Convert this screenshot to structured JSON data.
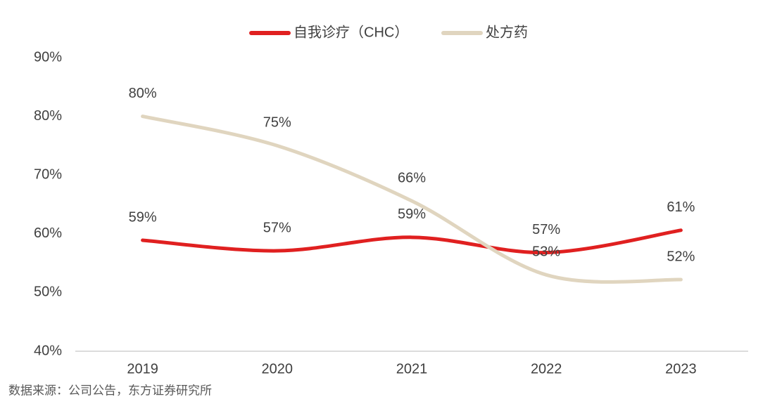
{
  "chart_data": {
    "type": "line",
    "categories": [
      "2019",
      "2020",
      "2021",
      "2022",
      "2023"
    ],
    "series": [
      {
        "name": "自我诊疗（CHC）",
        "color": "#e02020",
        "values": [
          58.9,
          57.1,
          59.4,
          56.8,
          60.6
        ],
        "value_labels": [
          "59%",
          "57%",
          "59%",
          "57%",
          "61%"
        ]
      },
      {
        "name": "处方药",
        "color": "#e0d5bf",
        "values": [
          80,
          75,
          65.6,
          53,
          52.2
        ],
        "value_labels": [
          "80%",
          "75%",
          "66%",
          "53%",
          "52%"
        ]
      }
    ],
    "ylim": [
      40,
      90
    ],
    "yticks": [
      {
        "value": 40,
        "label": "40%"
      },
      {
        "value": 50,
        "label": "50%"
      },
      {
        "value": 60,
        "label": "60%"
      },
      {
        "value": 70,
        "label": "70%"
      },
      {
        "value": 80,
        "label": "80%"
      },
      {
        "value": 90,
        "label": "90%"
      }
    ],
    "legend": "top",
    "source": "数据来源：公司公告，东方证券研究所"
  }
}
